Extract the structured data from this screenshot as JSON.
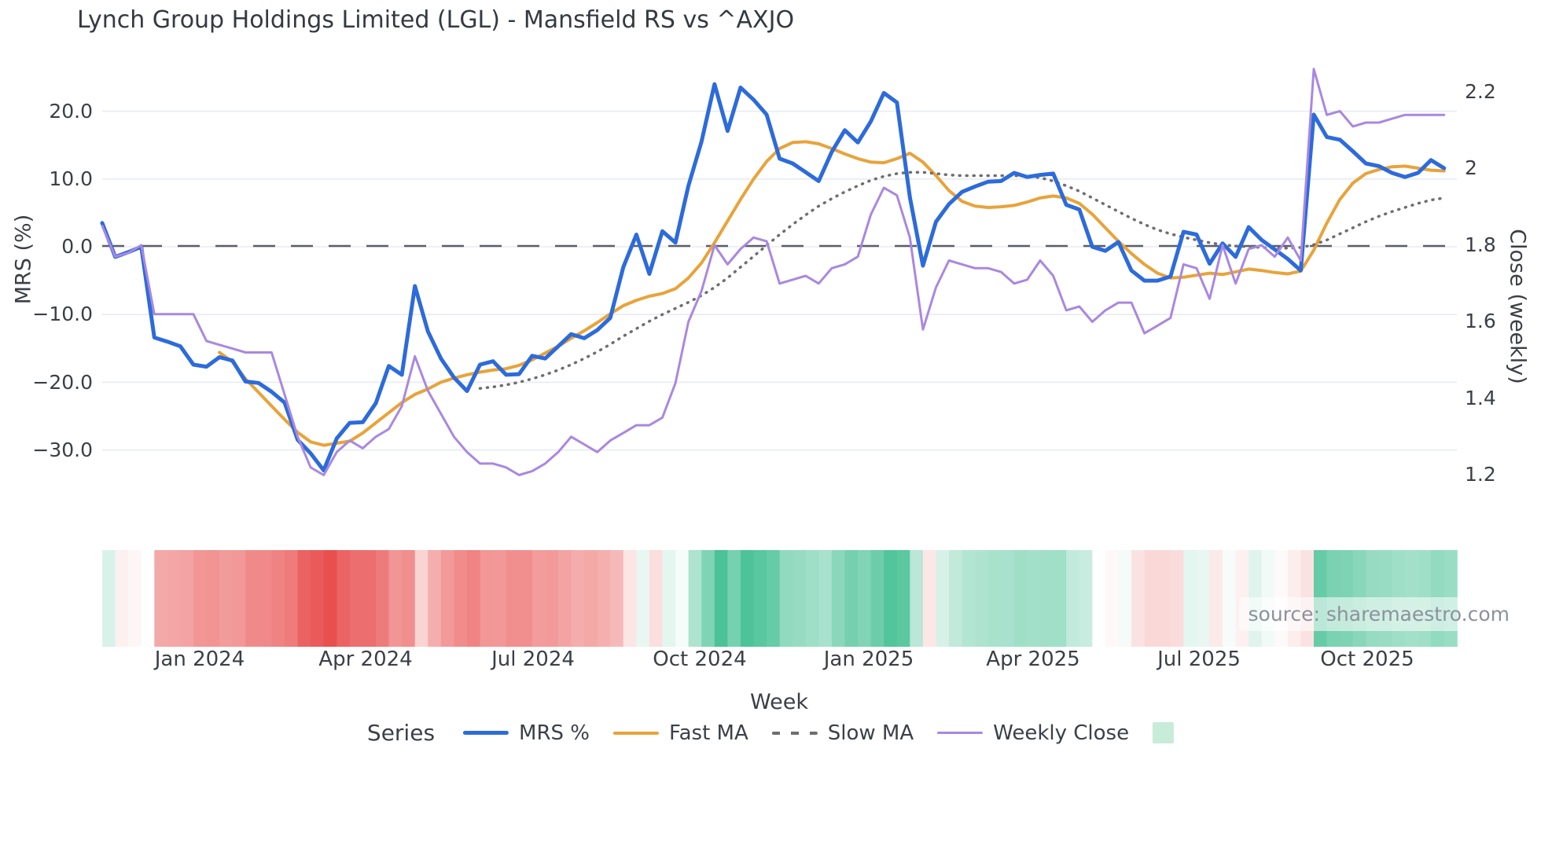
{
  "title": "Lynch Group Holdings Limited (LGL) - Mansfield RS vs ^AXJO",
  "source": "source: sharemaestro.com",
  "legend": {
    "title": "Series",
    "items": [
      {
        "label": "MRS %",
        "color": "#2d6bdb",
        "style": "solid"
      },
      {
        "label": "Fast MA",
        "color": "#e8a33a",
        "style": "solid"
      },
      {
        "label": "Slow MA",
        "color": "#6e6e6e",
        "style": "dotted"
      },
      {
        "label": "Weekly Close",
        "color": "#a988e0",
        "style": "solid"
      }
    ],
    "patch_color": "#c7ecd9"
  },
  "chart_data": {
    "type": "line",
    "title": "Lynch Group Holdings Limited (LGL) - Mansfield RS vs ^AXJO",
    "weeks": 104,
    "x_axis": {
      "label": "Week",
      "tick_labels": [
        "Jan 2024",
        "Apr 2024",
        "Jul 2024",
        "Oct 2024",
        "Jan 2025",
        "Apr 2025",
        "Jul 2025",
        "Oct 2025"
      ]
    },
    "y_left": {
      "label": "MRS (%)",
      "tick_labels": [
        "20.0",
        "10.0",
        "0.0",
        "−10.0",
        "−20.0",
        "−30.0"
      ],
      "tick_values": [
        20,
        10,
        0,
        -10,
        -20,
        -30
      ],
      "range": [
        -36,
        26.5
      ],
      "grid": true
    },
    "y_right": {
      "label": "Close (weekly)",
      "tick_labels": [
        "2.2",
        "2",
        "1.8",
        "1.6",
        "1.4",
        "1.2"
      ],
      "tick_values": [
        2.2,
        2.0,
        1.8,
        1.6,
        1.4,
        1.2
      ]
    },
    "zero_line": {
      "value": 0,
      "style": "dashed",
      "color": "#5a5f68"
    },
    "series": [
      {
        "name": "MRS %",
        "axis": "left",
        "color": "#2d6bdb",
        "style": "solid",
        "width": 5,
        "values": [
          3.5,
          -1.5,
          -0.8,
          0.0,
          -13.4,
          -14.0,
          -14.7,
          -17.4,
          -17.7,
          -16.3,
          -16.8,
          -19.9,
          -20.1,
          -21.4,
          -23.0,
          -28.5,
          -30.5,
          -33.0,
          -28.3,
          -26.0,
          -25.9,
          -23.1,
          -17.6,
          -18.9,
          -5.8,
          -12.5,
          -16.5,
          -19.3,
          -21.3,
          -17.4,
          -16.9,
          -18.9,
          -18.8,
          -16.1,
          -16.5,
          -14.7,
          -12.9,
          -13.5,
          -12.3,
          -10.5,
          -3.0,
          1.8,
          -4.0,
          2.3,
          0.6,
          9.0,
          15.5,
          24.0,
          17.1,
          23.5,
          21.7,
          19.5,
          13.0,
          12.3,
          11.0,
          9.7,
          14.0,
          17.2,
          15.4,
          18.5,
          22.7,
          21.3,
          7.3,
          -2.8,
          3.7,
          6.3,
          8.1,
          8.9,
          9.6,
          9.7,
          10.9,
          10.3,
          10.6,
          10.8,
          6.2,
          5.5,
          0.0,
          -0.6,
          0.7,
          -3.5,
          -5.0,
          -5.0,
          -4.4,
          2.2,
          1.8,
          -2.5,
          0.5,
          -1.5,
          2.9,
          1.0,
          -0.4,
          -1.8,
          -3.5,
          19.5,
          16.2,
          15.8,
          14.1,
          12.3,
          11.9,
          10.9,
          10.3,
          10.9,
          12.8,
          11.6
        ]
      },
      {
        "name": "Fast MA",
        "axis": "left",
        "color": "#e8a33a",
        "style": "solid",
        "width": 4,
        "values": [
          null,
          null,
          null,
          null,
          null,
          null,
          null,
          null,
          null,
          -15.6,
          -17.0,
          -19.5,
          -21.5,
          -23.5,
          -25.5,
          -27.4,
          -28.8,
          -29.3,
          -29.0,
          -28.7,
          -27.5,
          -26.0,
          -24.5,
          -23.0,
          -21.8,
          -21.0,
          -20.0,
          -19.4,
          -18.9,
          -18.5,
          -18.2,
          -18.0,
          -17.5,
          -16.7,
          -15.7,
          -14.7,
          -13.5,
          -12.4,
          -11.2,
          -9.9,
          -8.7,
          -7.9,
          -7.3,
          -6.9,
          -6.2,
          -4.6,
          -2.4,
          0.6,
          3.8,
          7.0,
          10.0,
          12.6,
          14.5,
          15.4,
          15.5,
          15.2,
          14.5,
          13.7,
          13.0,
          12.5,
          12.4,
          13.0,
          13.8,
          12.5,
          10.5,
          8.3,
          6.7,
          6.0,
          5.8,
          5.9,
          6.1,
          6.6,
          7.2,
          7.5,
          7.2,
          6.4,
          4.8,
          2.8,
          0.8,
          -1.0,
          -2.6,
          -3.9,
          -4.6,
          -4.5,
          -4.2,
          -3.9,
          -4.1,
          -3.7,
          -3.3,
          -3.5,
          -3.8,
          -4.0,
          -3.6,
          -0.5,
          3.5,
          7.0,
          9.4,
          10.8,
          11.4,
          11.8,
          11.9,
          11.6,
          11.3,
          11.2
        ]
      },
      {
        "name": "Slow MA",
        "axis": "left",
        "color": "#6e6e6e",
        "style": "dotted",
        "width": 3.5,
        "values": [
          null,
          null,
          null,
          null,
          null,
          null,
          null,
          null,
          null,
          null,
          null,
          null,
          null,
          null,
          null,
          null,
          null,
          null,
          null,
          null,
          null,
          null,
          null,
          null,
          null,
          null,
          null,
          null,
          null,
          -20.9,
          -20.7,
          -20.4,
          -20.0,
          -19.5,
          -18.9,
          -18.2,
          -17.4,
          -16.5,
          -15.5,
          -14.4,
          -13.2,
          -12.1,
          -11.0,
          -10.0,
          -9.1,
          -8.2,
          -7.2,
          -6.0,
          -4.6,
          -3.0,
          -1.4,
          0.2,
          1.8,
          3.3,
          4.7,
          6.0,
          7.1,
          8.1,
          9.0,
          9.8,
          10.4,
          10.8,
          11.0,
          11.0,
          10.8,
          10.6,
          10.5,
          10.5,
          10.5,
          10.5,
          10.5,
          10.4,
          10.2,
          9.7,
          9.0,
          8.2,
          7.2,
          6.2,
          5.2,
          4.2,
          3.3,
          2.5,
          1.9,
          1.4,
          1.0,
          0.6,
          0.3,
          0.1,
          0.0,
          -0.1,
          -0.2,
          -0.2,
          -0.1,
          0.3,
          1.0,
          1.9,
          2.8,
          3.7,
          4.5,
          5.2,
          5.8,
          6.4,
          6.9,
          7.2
        ]
      },
      {
        "name": "Weekly Close",
        "axis": "right",
        "color": "#a988e0",
        "style": "solid",
        "width": 3,
        "values": [
          1.85,
          1.77,
          1.78,
          1.8,
          1.62,
          1.62,
          1.62,
          1.62,
          1.55,
          1.54,
          1.53,
          1.52,
          1.52,
          1.52,
          1.41,
          1.3,
          1.22,
          1.2,
          1.26,
          1.29,
          1.27,
          1.3,
          1.32,
          1.38,
          1.51,
          1.42,
          1.36,
          1.3,
          1.26,
          1.23,
          1.23,
          1.22,
          1.2,
          1.21,
          1.23,
          1.26,
          1.3,
          1.28,
          1.26,
          1.29,
          1.31,
          1.33,
          1.33,
          1.35,
          1.44,
          1.6,
          1.68,
          1.8,
          1.75,
          1.79,
          1.82,
          1.81,
          1.7,
          1.71,
          1.72,
          1.7,
          1.74,
          1.75,
          1.77,
          1.88,
          1.95,
          1.93,
          1.82,
          1.58,
          1.69,
          1.76,
          1.75,
          1.74,
          1.74,
          1.73,
          1.7,
          1.71,
          1.76,
          1.72,
          1.63,
          1.64,
          1.6,
          1.63,
          1.65,
          1.65,
          1.57,
          1.59,
          1.61,
          1.75,
          1.74,
          1.66,
          1.8,
          1.7,
          1.79,
          1.8,
          1.77,
          1.82,
          1.76,
          2.26,
          2.14,
          2.15,
          2.11,
          2.12,
          2.12,
          2.13,
          2.14,
          2.14,
          2.14,
          2.14
        ]
      }
    ],
    "heatmap": {
      "derived_from": "MRS %",
      "negative_color": "#e94f4f",
      "neutral_color": "#ffffff",
      "positive_color": "#3fbe90",
      "legend_position": "bottom strip"
    }
  }
}
